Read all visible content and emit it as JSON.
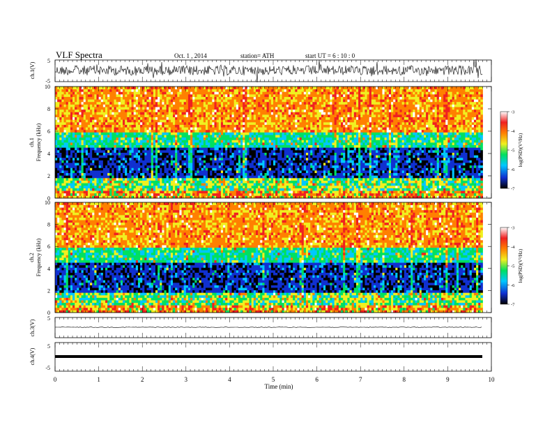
{
  "header": {
    "title": "VLF  Spectra",
    "date": "Oct. 1  , 2014",
    "station": "station= ATH",
    "start": "start  UT  =   6  : 10 : 0"
  },
  "chart_data": [
    {
      "type": "line",
      "panel": "ch1_waveform",
      "ylabel": "ch.1(V)",
      "ylim": [
        -5,
        5
      ],
      "yticks": [
        "5",
        "-5"
      ],
      "xlim": [
        0,
        10
      ],
      "trace_end_min": 9.8
    },
    {
      "type": "heatmap",
      "panel": "ch1_spectrogram",
      "ylabel_line1": "ch.1",
      "ylabel_line2": "Frequency  (kHz)",
      "ylim": [
        0,
        10
      ],
      "yticks": [
        "0",
        "2",
        "4",
        "6",
        "8",
        "10"
      ],
      "xlim": [
        0,
        9.8
      ],
      "colorbar": {
        "label": "log(PSD)(V²/Hz)",
        "range": [
          -7,
          -3
        ],
        "ticks": [
          "-3",
          "-4",
          "-5",
          "-6",
          "-7"
        ],
        "colors": [
          "#000000",
          "#1030d0",
          "#00c8ff",
          "#00e060",
          "#f0f020",
          "#ff8000",
          "#f02020",
          "#ffffff"
        ]
      }
    },
    {
      "type": "heatmap",
      "panel": "ch2_spectrogram",
      "ylabel_line1": "ch.2",
      "ylabel_line2": "Frequency  (kHz)",
      "ylim": [
        0,
        10
      ],
      "yticks": [
        "0",
        "2",
        "4",
        "6",
        "8",
        "10"
      ],
      "xlim": [
        0,
        9.8
      ],
      "colorbar": {
        "label": "log(PSD)(V²/Hz)",
        "range": [
          -7,
          -3
        ],
        "ticks": [
          "-3",
          "-4",
          "-5",
          "-6",
          "-7"
        ],
        "colors": [
          "#000000",
          "#1030d0",
          "#00c8ff",
          "#00e060",
          "#f0f020",
          "#ff8000",
          "#f02020",
          "#ffffff"
        ]
      }
    },
    {
      "type": "line",
      "panel": "ch3_waveform",
      "ylabel": "ch.3(V)",
      "ylim": [
        -5,
        5
      ],
      "yticks": [
        "5",
        "-5"
      ],
      "level": 0
    },
    {
      "type": "line",
      "panel": "ch4_waveform",
      "ylabel": "ch.4(V)",
      "ylim": [
        -5,
        5
      ],
      "yticks": [
        "5",
        "-5"
      ],
      "level": 0
    }
  ],
  "xaxis": {
    "label": "Time  (min)",
    "ticks": [
      "0",
      "1",
      "2",
      "3",
      "4",
      "5",
      "6",
      "7",
      "8",
      "9",
      "10"
    ]
  }
}
